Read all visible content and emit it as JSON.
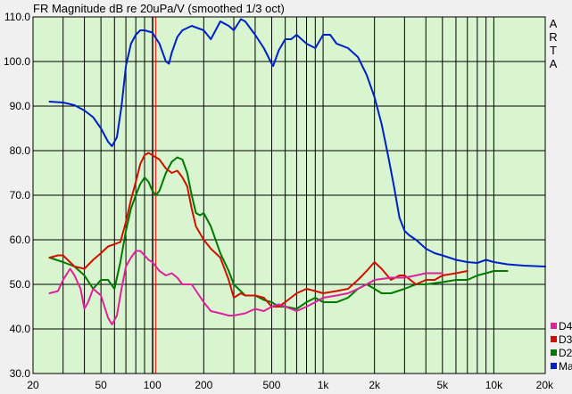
{
  "chart_data": {
    "type": "line",
    "title": "FR Magnitude dB re 20uPa/V (smoothed 1/3 oct)",
    "side_label": "ARTA",
    "xscale": "log",
    "xlim": [
      20,
      20000
    ],
    "ylim": [
      30,
      110
    ],
    "grid": true,
    "legend_position": "bottom-right",
    "x_ticks": [
      {
        "value": 20,
        "label": "20"
      },
      {
        "value": 50,
        "label": "50"
      },
      {
        "value": 100,
        "label": "100"
      },
      {
        "value": 200,
        "label": "200"
      },
      {
        "value": 500,
        "label": "500"
      },
      {
        "value": 1000,
        "label": "1k"
      },
      {
        "value": 2000,
        "label": "2k"
      },
      {
        "value": 5000,
        "label": "5k"
      },
      {
        "value": 10000,
        "label": "10k"
      },
      {
        "value": 20000,
        "label": "20k"
      }
    ],
    "y_ticks": [
      {
        "value": 30,
        "label": "30.0"
      },
      {
        "value": 40,
        "label": "40.0"
      },
      {
        "value": 50,
        "label": "50.0"
      },
      {
        "value": 60,
        "label": "60.0"
      },
      {
        "value": 70,
        "label": "70.0"
      },
      {
        "value": 80,
        "label": "80.0"
      },
      {
        "value": 90,
        "label": "90.0"
      },
      {
        "value": 100,
        "label": "100.0"
      },
      {
        "value": 110,
        "label": "110.0"
      }
    ],
    "marker_x": 103,
    "colors": {
      "plot_bg": "#d8f5d0",
      "grid": "#000000",
      "marker": "#e00000",
      "frame_bg": "#f0f0f0"
    },
    "series": [
      {
        "name": "Ma",
        "color": "#0020c8",
        "x": [
          25,
          30,
          35,
          40,
          45,
          50,
          55,
          58,
          62,
          66,
          70,
          75,
          80,
          85,
          90,
          100,
          110,
          120,
          125,
          130,
          140,
          150,
          170,
          200,
          220,
          250,
          280,
          300,
          330,
          350,
          400,
          450,
          500,
          510,
          550,
          600,
          650,
          700,
          800,
          900,
          1000,
          1100,
          1200,
          1400,
          1600,
          1800,
          2000,
          2200,
          2400,
          2600,
          2800,
          3000,
          3200,
          3500,
          4000,
          4500,
          5000,
          6000,
          7000,
          8000,
          9000,
          10000,
          12000,
          15000,
          20000
        ],
        "y": [
          91,
          90.8,
          90.2,
          89,
          87.5,
          85,
          82,
          81,
          83,
          90,
          99,
          104,
          106,
          107,
          107,
          106.5,
          104,
          100,
          99.5,
          102,
          105.5,
          107,
          108,
          107,
          105,
          109,
          108,
          107,
          109.5,
          109,
          106,
          103,
          99.5,
          99,
          102.5,
          105,
          105,
          106,
          104,
          103,
          106,
          106,
          104,
          103,
          101,
          97,
          92,
          86,
          79,
          72,
          65,
          62,
          61,
          60,
          58,
          57,
          56.5,
          55.5,
          55,
          54.8,
          55.5,
          55,
          54.5,
          54.2,
          54
        ]
      },
      {
        "name": "D2",
        "color": "#007a00",
        "x": [
          25,
          30,
          35,
          40,
          45,
          50,
          55,
          60,
          65,
          70,
          75,
          80,
          85,
          90,
          95,
          100,
          105,
          110,
          120,
          130,
          140,
          150,
          160,
          170,
          180,
          190,
          200,
          220,
          250,
          280,
          300,
          350,
          400,
          450,
          500,
          550,
          600,
          700,
          800,
          900,
          1000,
          1200,
          1400,
          1600,
          1800,
          2000,
          2200,
          2500,
          3000,
          3500,
          4000,
          5000,
          6000,
          7000,
          8000,
          9000,
          10000,
          12000
        ],
        "y": [
          56,
          55,
          54,
          52,
          49,
          51,
          51,
          49,
          55,
          62,
          67,
          70,
          72.5,
          74,
          73,
          71,
          70,
          71,
          75,
          77.5,
          78.5,
          78,
          75,
          70,
          66,
          65.5,
          66,
          63,
          57,
          53,
          50,
          47.5,
          47.5,
          46.5,
          46,
          45,
          45,
          44.5,
          46,
          47,
          46,
          46,
          47,
          49,
          50,
          49,
          48,
          48,
          49,
          50,
          50,
          50.5,
          51,
          51,
          52,
          52.5,
          53,
          53
        ]
      },
      {
        "name": "D3",
        "color": "#d01000",
        "x": [
          25,
          28,
          30,
          35,
          40,
          45,
          50,
          55,
          60,
          65,
          70,
          75,
          80,
          85,
          90,
          95,
          100,
          110,
          120,
          130,
          140,
          150,
          160,
          170,
          180,
          200,
          220,
          250,
          280,
          300,
          330,
          350,
          400,
          450,
          500,
          550,
          600,
          700,
          800,
          900,
          1000,
          1200,
          1400,
          1600,
          1800,
          2000,
          2200,
          2500,
          2800,
          3000,
          3500,
          4000,
          4500,
          5000,
          6000,
          7000
        ],
        "y": [
          56,
          56.5,
          56.5,
          54,
          53.5,
          55.5,
          57,
          58.5,
          59,
          59.5,
          64,
          69,
          73,
          77,
          79,
          79.5,
          79,
          78,
          76,
          75,
          75.5,
          74,
          72,
          67,
          63,
          60,
          58,
          56,
          51,
          47,
          48,
          47.5,
          47.5,
          47,
          45,
          45,
          46,
          48,
          49,
          48.5,
          48,
          48.5,
          49,
          51,
          53,
          55,
          53.5,
          51,
          52,
          52,
          50,
          51,
          51,
          52,
          52.5,
          53
        ]
      },
      {
        "name": "D4",
        "color": "#e0209c",
        "x": [
          25,
          28,
          30,
          33,
          35,
          38,
          40,
          42,
          45,
          50,
          55,
          58,
          62,
          66,
          70,
          75,
          80,
          85,
          90,
          95,
          100,
          110,
          120,
          130,
          140,
          150,
          170,
          200,
          220,
          250,
          280,
          300,
          350,
          400,
          450,
          500,
          550,
          600,
          650,
          700,
          800,
          900,
          1000,
          1200,
          1400,
          1600,
          1800,
          2000,
          2500,
          3000,
          3500,
          4000,
          4500,
          5000
        ],
        "y": [
          48,
          48.5,
          51,
          53.5,
          52,
          49,
          44.5,
          46,
          49,
          47.5,
          42.5,
          41,
          43,
          49,
          54,
          56,
          57.5,
          57.5,
          56.5,
          55.5,
          55,
          53,
          52,
          52.5,
          51.5,
          50,
          50,
          46,
          44,
          43.5,
          43,
          43,
          43.5,
          44.5,
          44,
          45,
          45.5,
          45,
          44.5,
          44,
          45,
          46,
          47,
          47.5,
          48,
          49,
          50,
          51,
          51.5,
          51.5,
          52,
          52.5,
          52.5,
          52.5
        ]
      }
    ],
    "legend": [
      {
        "label": "D4",
        "color": "#e0209c"
      },
      {
        "label": "D3",
        "color": "#d01000"
      },
      {
        "label": "D2",
        "color": "#007a00"
      },
      {
        "label": "Ma",
        "color": "#0020c8"
      }
    ]
  }
}
